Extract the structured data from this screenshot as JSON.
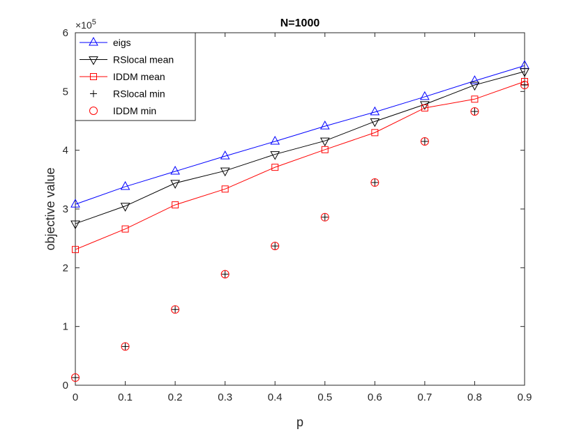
{
  "chart_data": {
    "type": "line",
    "title": "N=1000",
    "xlabel": "p",
    "ylabel": "objective value",
    "y_exponent_label": "×10^5",
    "y_multiplier_text": "×10",
    "y_exponent_text": "5",
    "x": [
      0,
      0.1,
      0.2,
      0.3,
      0.4,
      0.5,
      0.6,
      0.7,
      0.8,
      0.9
    ],
    "xlim": [
      0,
      0.9
    ],
    "ylim": [
      0,
      6
    ],
    "xticks": [
      "0",
      "0.1",
      "0.2",
      "0.3",
      "0.4",
      "0.5",
      "0.6",
      "0.7",
      "0.8",
      "0.9"
    ],
    "yticks": [
      "0",
      "1",
      "2",
      "3",
      "4",
      "5",
      "6"
    ],
    "legend_position": "top-left",
    "series": [
      {
        "name": "eigs",
        "color": "#0000ff",
        "marker": "triangle-up",
        "line": true,
        "values": [
          3.08,
          3.38,
          3.64,
          3.9,
          4.15,
          4.41,
          4.65,
          4.91,
          5.18,
          5.44
        ]
      },
      {
        "name": "RSlocal mean",
        "color": "#000000",
        "marker": "triangle-down",
        "line": true,
        "values": [
          2.75,
          3.05,
          3.44,
          3.65,
          3.93,
          4.16,
          4.49,
          4.78,
          5.11,
          5.34
        ]
      },
      {
        "name": "IDDM mean",
        "color": "#ff0000",
        "marker": "square",
        "line": true,
        "values": [
          2.31,
          2.66,
          3.07,
          3.34,
          3.71,
          4.01,
          4.3,
          4.72,
          4.87,
          5.17
        ]
      },
      {
        "name": "RSlocal min",
        "color": "#000000",
        "marker": "plus",
        "line": false,
        "values": [
          0.13,
          0.66,
          1.29,
          1.89,
          2.37,
          2.86,
          3.45,
          4.15,
          4.66,
          5.11
        ]
      },
      {
        "name": "IDDM min",
        "color": "#ff0000",
        "marker": "circle",
        "line": false,
        "values": [
          0.13,
          0.66,
          1.29,
          1.89,
          2.37,
          2.86,
          3.45,
          4.15,
          4.66,
          5.11
        ]
      }
    ]
  }
}
